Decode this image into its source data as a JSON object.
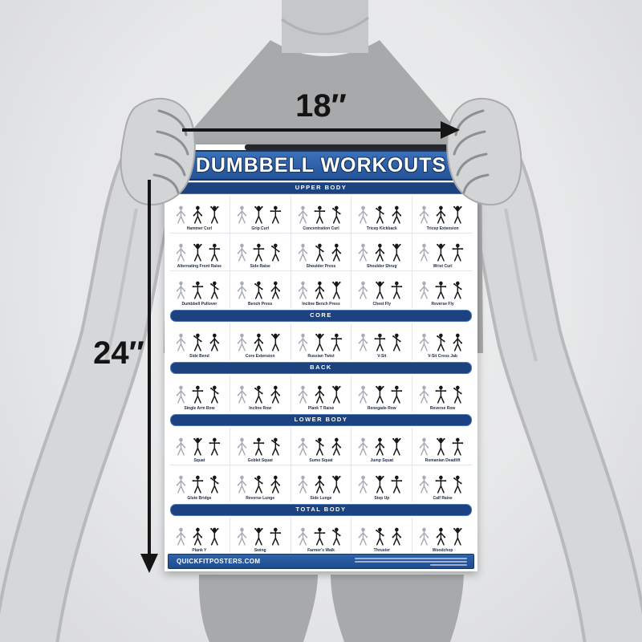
{
  "dimensions": {
    "width_label": "18″",
    "height_label": "24″"
  },
  "poster": {
    "title": "DUMBBELL WORKOUTS",
    "footer_site": "QUICKFITPOSTERS.COM",
    "sections": [
      {
        "label": "UPPER BODY",
        "rows": [
          [
            "Hammer Curl",
            "Grip Curl",
            "Concentration Curl",
            "Tricep Kickback",
            "Tricep Extension"
          ],
          [
            "Alternating Front Raise",
            "Side Raise",
            "Shoulder Press",
            "Shoulder Shrug",
            "Wrist Curl"
          ],
          [
            "Dumbbell Pullover",
            "Bench Press",
            "Incline Bench Press",
            "Chest Fly",
            "Reverse Fly"
          ]
        ]
      },
      {
        "label": "CORE",
        "rows": [
          [
            "Side Bend",
            "Core Extension",
            "Russian Twist",
            "V-Sit",
            "V-Sit Cross Jab"
          ]
        ]
      },
      {
        "label": "BACK",
        "rows": [
          [
            "Single Arm Row",
            "Incline Row",
            "Plank T Raise",
            "Renegade Row",
            "Reverse Row"
          ]
        ]
      },
      {
        "label": "LOWER BODY",
        "rows": [
          [
            "Squat",
            "Goblet Squat",
            "Sumo Squat",
            "Jump Squat",
            "Romanian Deadlift"
          ],
          [
            "Glute Bridge",
            "Reverse Lunge",
            "Side Lunge",
            "Step Up",
            "Calf Raise"
          ]
        ]
      },
      {
        "label": "TOTAL BODY",
        "rows": [
          [
            "Plank Y",
            "Swing",
            "Farmer's Walk",
            "Thruster",
            "Woodchop"
          ]
        ]
      }
    ]
  },
  "colors": {
    "banner_blue": "#2a5fa8",
    "section_navy": "#1c4280",
    "poster_white": "#ffffff",
    "arrow_black": "#151515",
    "shirt_gray": "#a7a9ab",
    "arm_gray": "#d3d4d6",
    "background_gray": "#e7e8e9"
  }
}
